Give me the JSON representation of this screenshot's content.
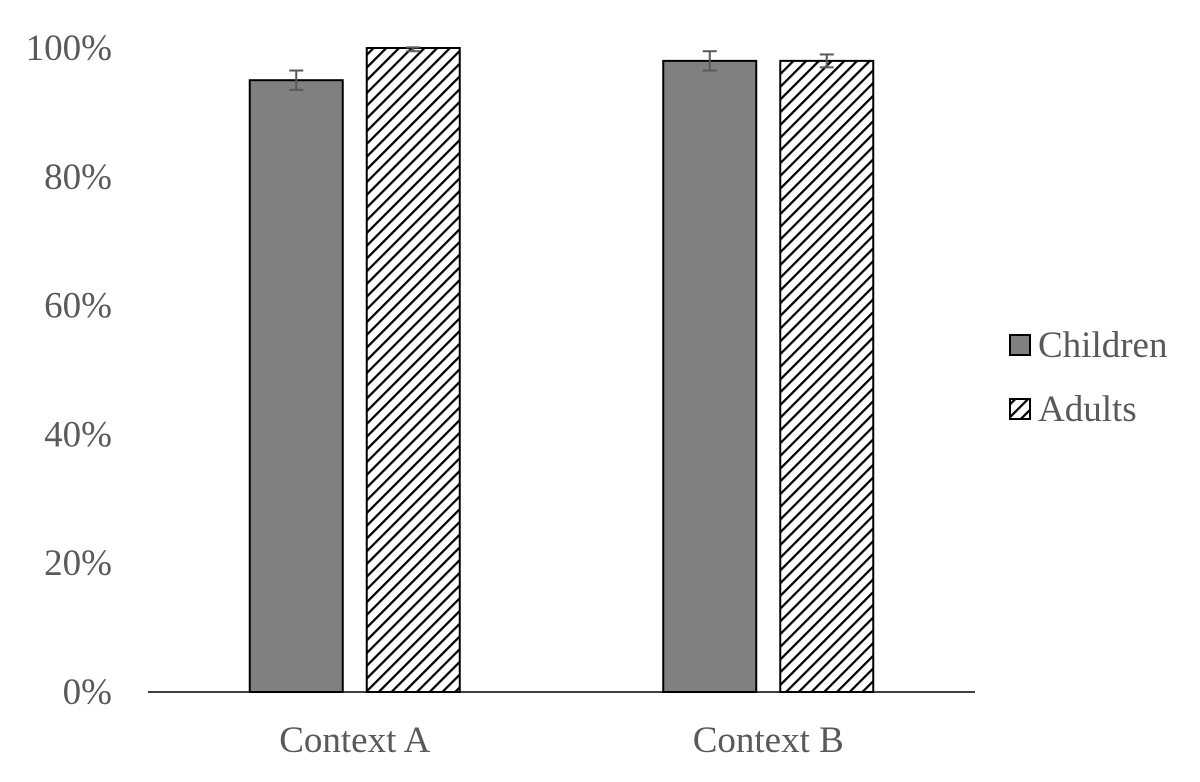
{
  "chart_data": {
    "type": "bar",
    "categories": [
      "Context A",
      "Context B"
    ],
    "series": [
      {
        "name": "Children",
        "values": [
          95,
          98
        ],
        "error": [
          1.5,
          1.5
        ],
        "color": "#808080",
        "pattern": "solid"
      },
      {
        "name": "Adults",
        "values": [
          100,
          98
        ],
        "error": [
          0.5,
          1.0
        ],
        "color": "#000000",
        "pattern": "diagonal-hatch"
      }
    ],
    "title": "",
    "xlabel": "",
    "ylabel": "",
    "ylim": [
      0,
      100
    ],
    "yticks": [
      "0%",
      "20%",
      "40%",
      "60%",
      "80%",
      "100%"
    ],
    "grid": false,
    "legend_position": "right"
  }
}
